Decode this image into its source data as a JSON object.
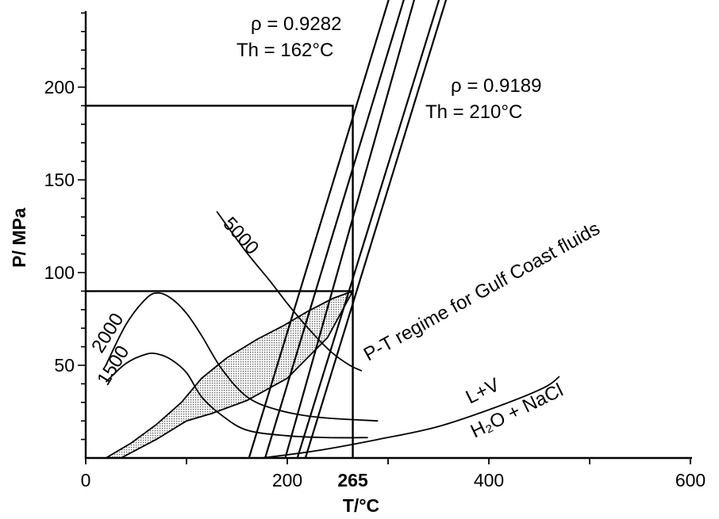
{
  "chart_data": {
    "type": "line",
    "xlabel": "T/°C",
    "ylabel": "P/ MPa",
    "xlim": [
      0,
      600
    ],
    "ylim": [
      0,
      240
    ],
    "x_ticks": [
      {
        "value": 0,
        "label": "0",
        "bold": false
      },
      {
        "value": 200,
        "label": "200",
        "bold": false
      },
      {
        "value": 265,
        "label": "265",
        "bold": true
      },
      {
        "value": 400,
        "label": "400",
        "bold": false
      },
      {
        "value": 600,
        "label": "600",
        "bold": false
      }
    ],
    "y_ticks": [
      {
        "value": 50,
        "label": "50"
      },
      {
        "value": 100,
        "label": "100"
      },
      {
        "value": 150,
        "label": "150"
      },
      {
        "value": 200,
        "label": "200"
      }
    ],
    "isochores": [
      {
        "x": [
          162,
          305
        ],
        "y": [
          0,
          255
        ]
      },
      {
        "x": [
          178,
          320
        ],
        "y": [
          0,
          255
        ]
      },
      {
        "x": [
          198,
          330
        ],
        "y": [
          0,
          255
        ]
      },
      {
        "x": [
          210,
          355
        ],
        "y": [
          0,
          255
        ]
      },
      {
        "x": [
          218,
          362
        ],
        "y": [
          0,
          255
        ]
      }
    ],
    "isochore_labels": [
      {
        "lines": [
          "ρ = 0.9282",
          "Th = 162°C"
        ]
      },
      {
        "lines": [
          "ρ = 0.9189",
          "Th = 210°C"
        ]
      }
    ],
    "reference_lines": [
      {
        "points": [
          [
            0,
            190
          ],
          [
            265,
            190
          ],
          [
            265,
            0
          ]
        ]
      },
      {
        "points": [
          [
            0,
            90
          ],
          [
            265,
            90
          ]
        ]
      }
    ],
    "depth_curves": [
      {
        "label": "5000",
        "x": [
          130,
          158,
          182,
          202,
          224,
          244,
          262,
          274
        ],
        "y": [
          133,
          112,
          96,
          82,
          68,
          57,
          50,
          47
        ]
      },
      {
        "label": "2000",
        "x": [
          20,
          40,
          60,
          72,
          85,
          100,
          115,
          135,
          160,
          190,
          230,
          290
        ],
        "y": [
          50,
          72,
          86,
          89,
          86,
          78,
          66,
          48,
          33,
          26,
          22,
          20
        ]
      },
      {
        "label": "1500",
        "x": [
          20,
          40,
          60,
          72,
          85,
          100,
          115,
          135,
          160,
          200,
          240,
          280
        ],
        "y": [
          41,
          51,
          56,
          56,
          53,
          46,
          33,
          23,
          15,
          12,
          11,
          11
        ]
      }
    ],
    "solubility_curve": {
      "x": [
        175,
        230,
        290,
        350,
        410,
        455,
        470
      ],
      "y": [
        0,
        4,
        10,
        17,
        28,
        38,
        44
      ],
      "labels": [
        "L+V",
        "H₂O + NaCl"
      ]
    },
    "shaded_region": {
      "label": "P-T regime for Gulf Coast fluids",
      "x": [
        265,
        245,
        220,
        195,
        170,
        140,
        115,
        95,
        70,
        45,
        20,
        35,
        70,
        100,
        125,
        160,
        200,
        240,
        265
      ],
      "y": [
        90,
        86,
        79,
        71,
        64,
        54,
        43,
        30,
        18,
        8,
        0,
        0,
        10,
        20,
        24,
        31,
        43,
        65,
        90
      ]
    }
  }
}
